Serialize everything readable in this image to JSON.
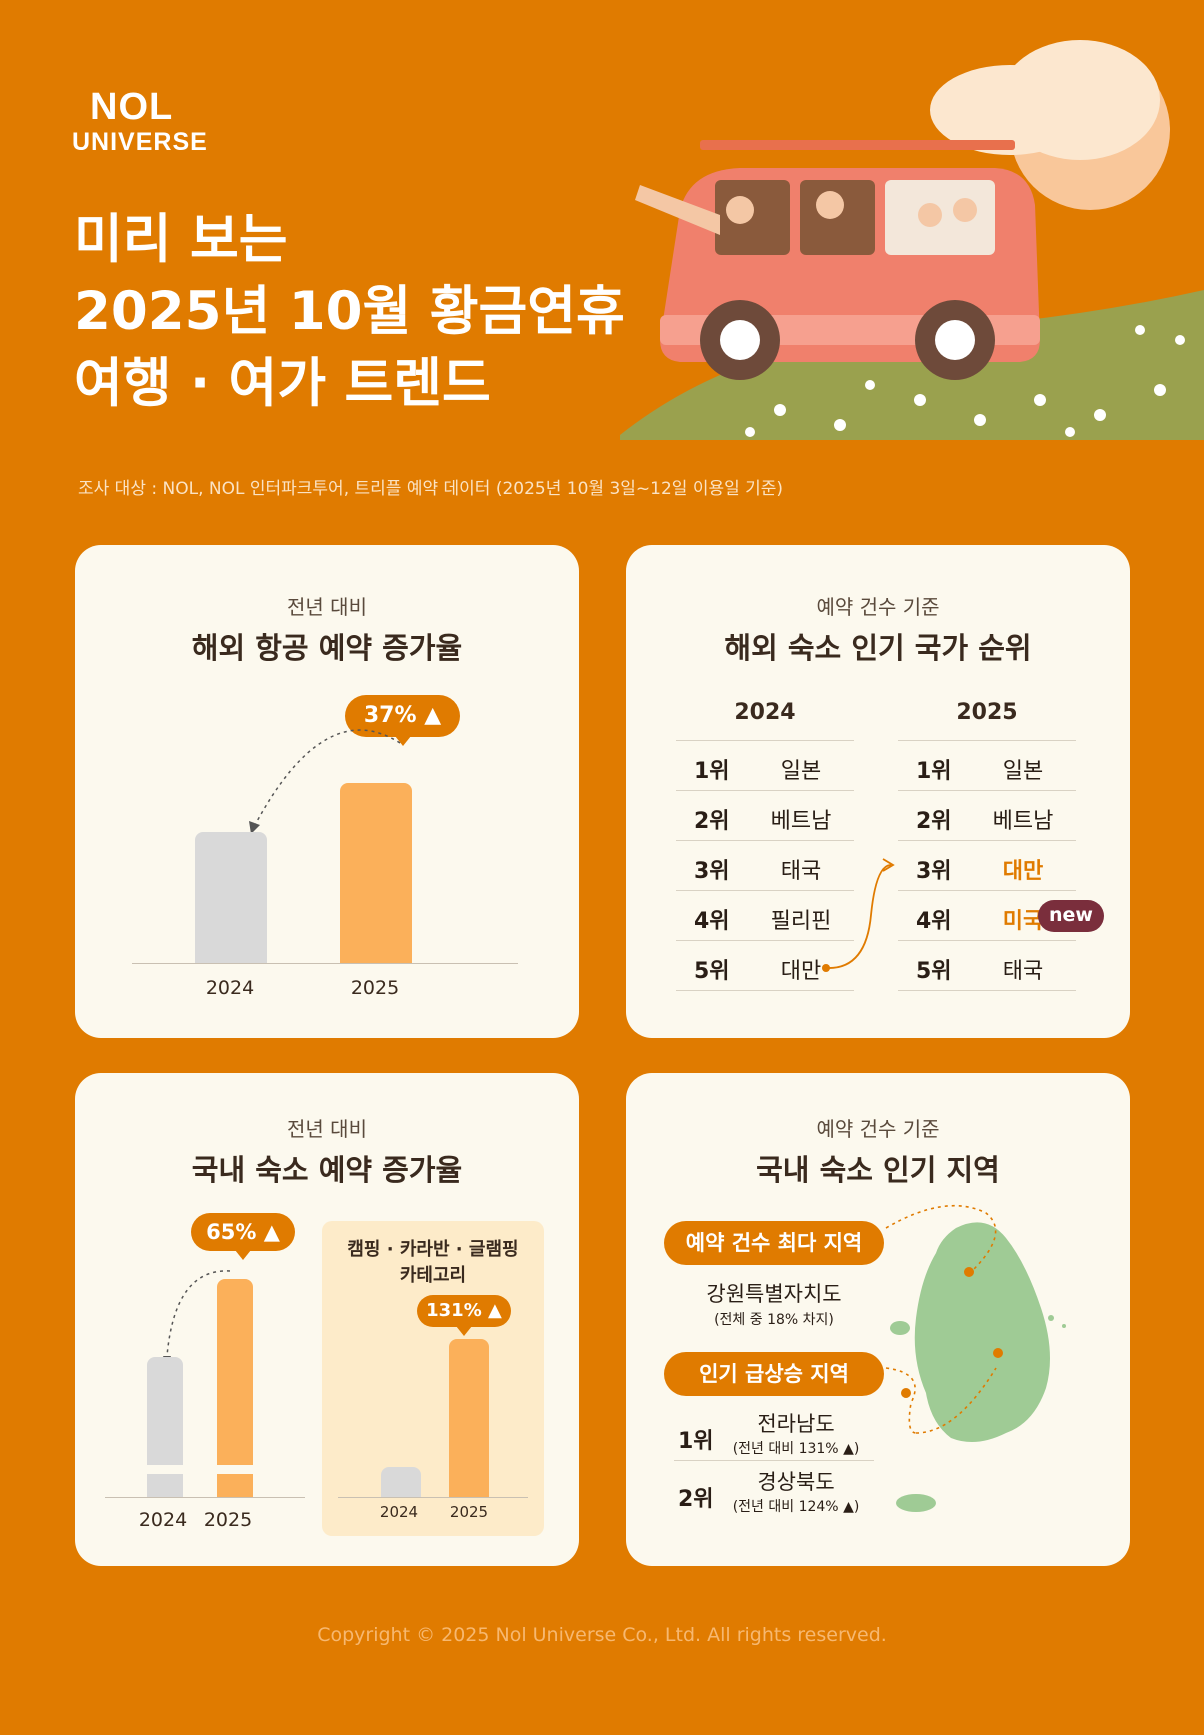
{
  "brand": {
    "line1": "NOL",
    "line2": "UNIVERSE"
  },
  "title": {
    "line1": "미리 보는",
    "line2": "2025년 10월 황금연휴",
    "line3": "여행 · 여가 트렌드"
  },
  "survey_note": "조사 대상 : NOL, NOL 인터파크투어, 트리플 예약 데이터 (2025년 10월 3일~12일 이용일 기준)",
  "overseas_flight": {
    "subtitle": "전년 대비",
    "heading": "해외 항공 예약 증가율",
    "badge": "37%",
    "chart_data": {
      "type": "bar",
      "categories": [
        "2024",
        "2025"
      ],
      "values": [
        100,
        137
      ],
      "increase_pct": 37
    }
  },
  "overseas_stay": {
    "subtitle": "예약 건수 기준",
    "heading": "해외 숙소 인기 국가 순위",
    "col2024": {
      "year": "2024",
      "rows": [
        {
          "rank": "1위",
          "country": "일본"
        },
        {
          "rank": "2위",
          "country": "베트남"
        },
        {
          "rank": "3위",
          "country": "태국"
        },
        {
          "rank": "4위",
          "country": "필리핀"
        },
        {
          "rank": "5위",
          "country": "대만"
        }
      ]
    },
    "col2025": {
      "year": "2025",
      "rows": [
        {
          "rank": "1위",
          "country": "일본"
        },
        {
          "rank": "2위",
          "country": "베트남"
        },
        {
          "rank": "3위",
          "country": "대만"
        },
        {
          "rank": "4위",
          "country": "미국"
        },
        {
          "rank": "5위",
          "country": "태국"
        }
      ]
    },
    "new_badge": "new"
  },
  "domestic_stay": {
    "subtitle": "전년 대비",
    "heading": "국내 숙소 예약 증가율",
    "badge": "65%",
    "x2024": "2024",
    "x2025": "2025",
    "category_title_line1": "캠핑 · 카라반 · 글램핑",
    "category_title_line2": "카테고리",
    "category_badge": "131%",
    "cat_x2024": "2024",
    "cat_x2025": "2025",
    "chart_data": [
      {
        "type": "bar",
        "categories": [
          "2024",
          "2025"
        ],
        "increase_pct": 65,
        "values": [
          100,
          165
        ]
      },
      {
        "type": "bar",
        "categories": [
          "2024",
          "2025"
        ],
        "increase_pct": 131,
        "values": [
          100,
          231
        ]
      }
    ]
  },
  "domestic_region": {
    "subtitle": "예약 건수 기준",
    "heading": "국내 숙소 인기 지역",
    "top_label": "예약 건수 최다 지역",
    "top_region": "강원특별자치도",
    "top_note": "(전체 중 18% 차지)",
    "rising_label": "인기 급상승 지역",
    "rising": [
      {
        "rank": "1위",
        "region": "전라남도",
        "note": "(전년 대비 131%"
      },
      {
        "rank": "2위",
        "region": "경상북도",
        "note": "(전년 대비 124%"
      }
    ]
  },
  "copyright": "Copyright © 2025 Nol Universe Co., Ltd. All rights reserved.",
  "colors": {
    "background": "#E07B00",
    "card": "#FCF9EE",
    "bar_2025": "#FBB05A",
    "bar_2024": "#D9D9D9",
    "new_badge": "#7A2E3C",
    "map_green": "#9FCB95"
  }
}
